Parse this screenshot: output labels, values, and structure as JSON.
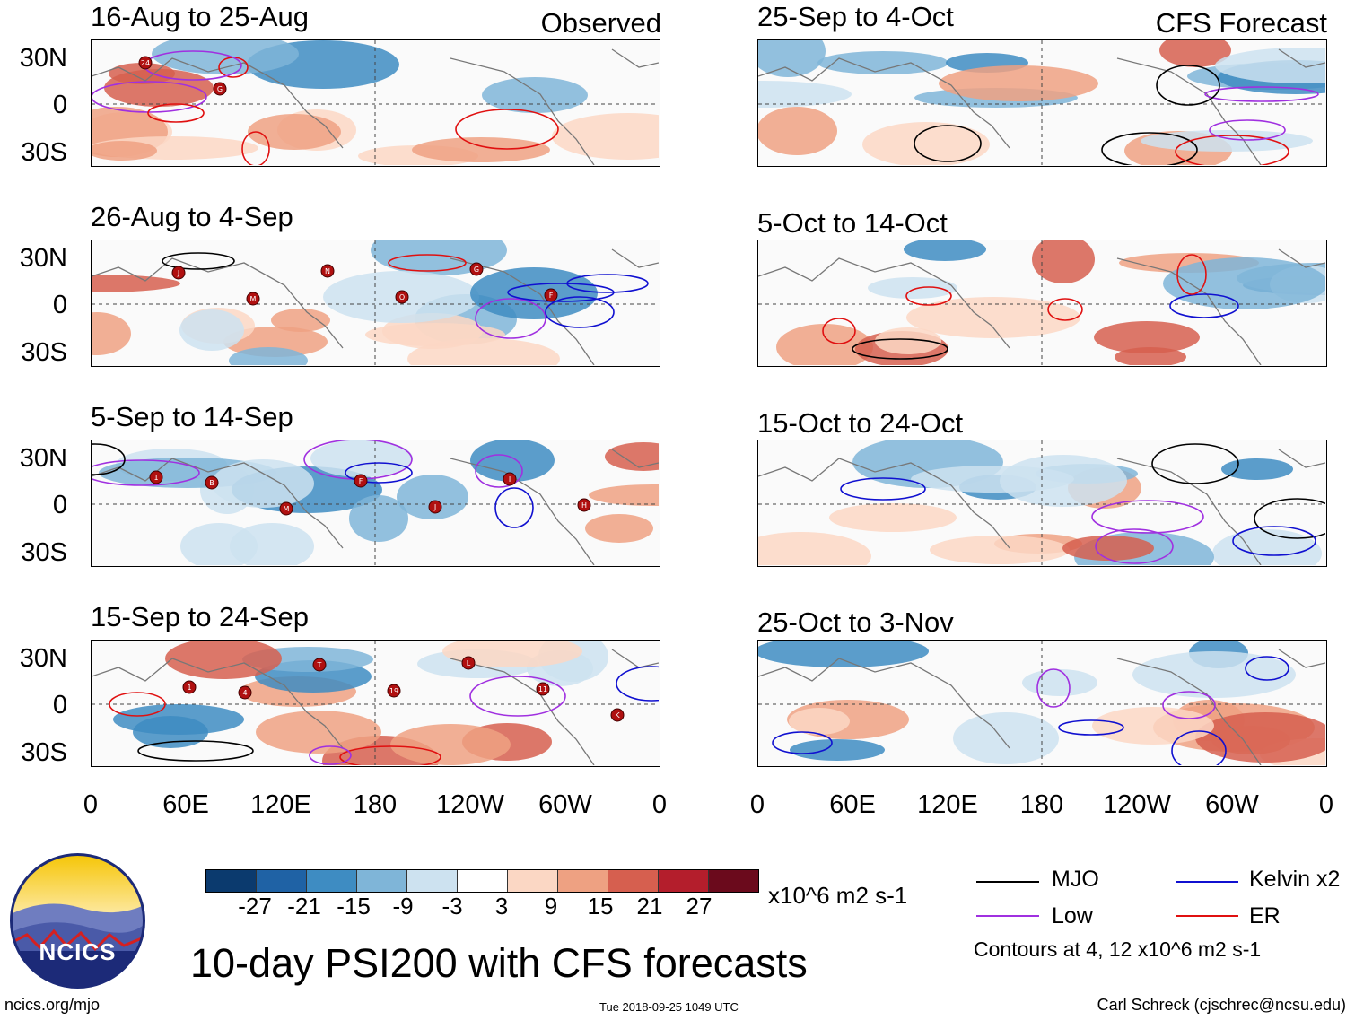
{
  "header": {
    "observed": "Observed",
    "forecast": "CFS Forecast"
  },
  "panels": [
    {
      "title": "16-Aug to 25-Aug",
      "column": "observed"
    },
    {
      "title": "26-Aug to 4-Sep",
      "column": "observed"
    },
    {
      "title": "5-Sep to 14-Sep",
      "column": "observed"
    },
    {
      "title": "15-Sep to 24-Sep",
      "column": "observed"
    },
    {
      "title": "25-Sep to 4-Oct",
      "column": "forecast"
    },
    {
      "title": "5-Oct to 14-Oct",
      "column": "forecast"
    },
    {
      "title": "15-Oct to 24-Oct",
      "column": "forecast"
    },
    {
      "title": "25-Oct to 3-Nov",
      "column": "forecast"
    }
  ],
  "axes": {
    "y_labels": [
      "30N",
      "0",
      "30S"
    ],
    "x_labels": [
      "0",
      "60E",
      "120E",
      "180",
      "120W",
      "60W",
      "0"
    ]
  },
  "colorbar": {
    "ticks": [
      "-27",
      "-21",
      "-15",
      "-9",
      "-3",
      "3",
      "9",
      "15",
      "21",
      "27"
    ],
    "colors": [
      "#0b3a6e",
      "#1f62a5",
      "#3e8cc2",
      "#7fb5d8",
      "#cde2f0",
      "#ffffff",
      "#fbd7c4",
      "#eea182",
      "#d65f4f",
      "#b41e2c",
      "#6b0a1c"
    ],
    "units": "x10^6 m2 s-1"
  },
  "legend": {
    "items": [
      {
        "label": "MJO",
        "color": "#000000"
      },
      {
        "label": "Kelvin x2",
        "color": "#1010d0"
      },
      {
        "label": "Low",
        "color": "#a030e0"
      },
      {
        "label": "ER",
        "color": "#e01010"
      }
    ],
    "contours_note": "Contours at 4, 12 x10^6 m2 s-1"
  },
  "title": "10-day PSI200 with CFS forecasts",
  "footer": {
    "url": "ncics.org/mjo",
    "timestamp": "Tue 2018-09-25 1049 UTC",
    "credit": "Carl Schreck (cjschrec@ncsu.edu)",
    "logo_text": "NCICS"
  },
  "storms": [
    [
      "24",
      "G"
    ],
    [
      "J",
      "M",
      "N",
      "O",
      "G",
      "F"
    ],
    [
      "B",
      "M",
      "F",
      "J",
      "I",
      "H",
      "1"
    ],
    [
      "4",
      "T",
      "19",
      "L",
      "11",
      "K",
      "1"
    ],
    [],
    [],
    [],
    []
  ]
}
